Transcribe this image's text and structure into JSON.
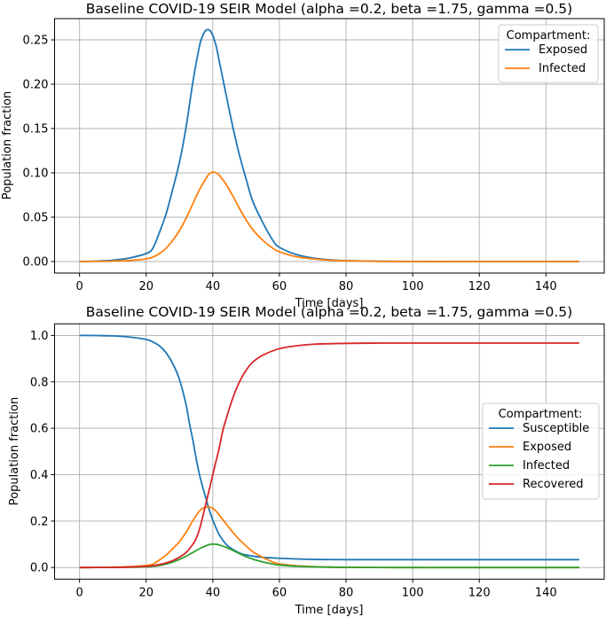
{
  "chart_data": [
    {
      "type": "line",
      "title": "Baseline COVID-19 SEIR Model (alpha =0.2, beta =1.75, gamma =0.5)",
      "xlabel": "Time [days]",
      "ylabel": "Population fraction",
      "xlim": [
        -7.5,
        157.5
      ],
      "ylim": [
        -0.013,
        0.274
      ],
      "xticks": [
        0,
        20,
        40,
        60,
        80,
        100,
        120,
        140
      ],
      "xtick_labels": [
        "0",
        "20",
        "40",
        "60",
        "80",
        "100",
        "120",
        "140"
      ],
      "yticks": [
        0.0,
        0.05,
        0.1,
        0.15,
        0.2,
        0.25
      ],
      "ytick_labels": [
        "0.00",
        "0.05",
        "0.10",
        "0.15",
        "0.20",
        "0.25"
      ],
      "grid": true,
      "legend": {
        "title": "Compartment:",
        "position": "top-right"
      },
      "series": [
        {
          "name": "Exposed",
          "color": "#1f77b4",
          "x": [
            0,
            5,
            10,
            15,
            20,
            22,
            24,
            26,
            28,
            30,
            32,
            34,
            36,
            37,
            38,
            39,
            40,
            41,
            42,
            44,
            46,
            48,
            50,
            52,
            55,
            58,
            60,
            65,
            70,
            75,
            80,
            90,
            100,
            110,
            120,
            130,
            140,
            150
          ],
          "y": [
            0.0,
            0.0005,
            0.0015,
            0.004,
            0.009,
            0.015,
            0.033,
            0.054,
            0.082,
            0.112,
            0.152,
            0.202,
            0.243,
            0.255,
            0.261,
            0.261,
            0.255,
            0.243,
            0.225,
            0.188,
            0.152,
            0.12,
            0.093,
            0.068,
            0.044,
            0.024,
            0.016,
            0.008,
            0.004,
            0.002,
            0.001,
            0.0003,
            0.0001,
            0.0,
            0.0,
            0.0,
            0.0,
            0.0
          ]
        },
        {
          "name": "Infected",
          "color": "#ff7f0e",
          "x": [
            0,
            5,
            10,
            15,
            20,
            22,
            24,
            26,
            28,
            30,
            32,
            34,
            36,
            38,
            39,
            40,
            41,
            42,
            44,
            46,
            48,
            50,
            52,
            55,
            58,
            60,
            65,
            70,
            75,
            80,
            90,
            100,
            110,
            120,
            130,
            140,
            150
          ],
          "y": [
            0.0,
            0.0002,
            0.0005,
            0.0012,
            0.003,
            0.005,
            0.009,
            0.015,
            0.024,
            0.035,
            0.049,
            0.065,
            0.081,
            0.094,
            0.099,
            0.101,
            0.1,
            0.097,
            0.087,
            0.074,
            0.06,
            0.047,
            0.036,
            0.024,
            0.015,
            0.011,
            0.0055,
            0.003,
            0.0015,
            0.0008,
            0.0002,
            0.0,
            0.0,
            0.0,
            0.0,
            0.0,
            0.0
          ]
        }
      ]
    },
    {
      "type": "line",
      "title": "Baseline COVID-19 SEIR Model (alpha =0.2, beta =1.75, gamma =0.5)",
      "xlabel": "Time [days]",
      "ylabel": "Population fraction",
      "xlim": [
        -7.5,
        157.5
      ],
      "ylim": [
        -0.05,
        1.05
      ],
      "xticks": [
        0,
        20,
        40,
        60,
        80,
        100,
        120,
        140
      ],
      "xtick_labels": [
        "0",
        "20",
        "40",
        "60",
        "80",
        "100",
        "120",
        "140"
      ],
      "yticks": [
        0.0,
        0.2,
        0.4,
        0.6,
        0.8,
        1.0
      ],
      "ytick_labels": [
        "0.0",
        "0.2",
        "0.4",
        "0.6",
        "0.8",
        "1.0"
      ],
      "grid": true,
      "legend": {
        "title": "Compartment:",
        "position": "center-right"
      },
      "series": [
        {
          "name": "Susceptible",
          "color": "#1f77b4",
          "x": [
            0,
            5,
            10,
            15,
            20,
            22,
            24,
            26,
            28,
            30,
            32,
            33,
            34,
            35,
            36,
            37,
            38,
            39,
            40,
            41,
            42,
            44,
            46,
            48,
            50,
            55,
            60,
            65,
            70,
            80,
            90,
            100,
            110,
            120,
            130,
            140,
            150
          ],
          "y": [
            1.0,
            0.9995,
            0.998,
            0.993,
            0.983,
            0.972,
            0.955,
            0.925,
            0.878,
            0.81,
            0.7,
            0.62,
            0.55,
            0.47,
            0.4,
            0.345,
            0.295,
            0.245,
            0.205,
            0.17,
            0.14,
            0.1,
            0.078,
            0.063,
            0.054,
            0.044,
            0.04,
            0.037,
            0.035,
            0.034,
            0.034,
            0.034,
            0.034,
            0.034,
            0.034,
            0.034,
            0.034
          ]
        },
        {
          "name": "Exposed",
          "color": "#ff7f0e",
          "x": [
            0,
            5,
            10,
            15,
            20,
            22,
            24,
            26,
            28,
            30,
            32,
            34,
            36,
            37,
            38,
            39,
            40,
            41,
            42,
            44,
            46,
            48,
            50,
            52,
            55,
            58,
            60,
            65,
            70,
            75,
            80,
            90,
            100,
            110,
            120,
            130,
            140,
            150
          ],
          "y": [
            0.0,
            0.0005,
            0.0015,
            0.004,
            0.009,
            0.015,
            0.033,
            0.054,
            0.082,
            0.112,
            0.152,
            0.202,
            0.243,
            0.255,
            0.261,
            0.261,
            0.255,
            0.243,
            0.225,
            0.188,
            0.152,
            0.12,
            0.093,
            0.068,
            0.044,
            0.024,
            0.016,
            0.008,
            0.004,
            0.002,
            0.001,
            0.0003,
            0.0001,
            0.0,
            0.0,
            0.0,
            0.0,
            0.0
          ]
        },
        {
          "name": "Infected",
          "color": "#2ca02c",
          "x": [
            0,
            5,
            10,
            15,
            20,
            22,
            24,
            26,
            28,
            30,
            32,
            34,
            36,
            38,
            39,
            40,
            41,
            42,
            44,
            46,
            48,
            50,
            52,
            55,
            58,
            60,
            65,
            70,
            75,
            80,
            90,
            100,
            110,
            120,
            130,
            140,
            150
          ],
          "y": [
            0.0,
            0.0002,
            0.0005,
            0.0012,
            0.003,
            0.005,
            0.009,
            0.015,
            0.024,
            0.035,
            0.049,
            0.065,
            0.081,
            0.094,
            0.099,
            0.101,
            0.1,
            0.097,
            0.087,
            0.074,
            0.06,
            0.047,
            0.036,
            0.024,
            0.015,
            0.011,
            0.0055,
            0.003,
            0.0015,
            0.0008,
            0.0002,
            0.0,
            0.0,
            0.0,
            0.0,
            0.0,
            0.0
          ]
        },
        {
          "name": "Recovered",
          "color": "#d62728",
          "x": [
            0,
            5,
            10,
            15,
            20,
            22,
            24,
            26,
            28,
            30,
            32,
            34,
            35,
            36,
            37,
            38,
            39,
            40,
            41,
            42,
            43,
            44,
            46,
            48,
            50,
            52,
            55,
            60,
            65,
            70,
            80,
            90,
            100,
            110,
            120,
            130,
            140,
            150
          ],
          "y": [
            0.0,
            0.0002,
            0.0008,
            0.002,
            0.005,
            0.008,
            0.013,
            0.02,
            0.03,
            0.045,
            0.065,
            0.1,
            0.125,
            0.165,
            0.22,
            0.28,
            0.34,
            0.4,
            0.46,
            0.52,
            0.59,
            0.64,
            0.73,
            0.8,
            0.85,
            0.885,
            0.915,
            0.943,
            0.955,
            0.962,
            0.966,
            0.967,
            0.967,
            0.967,
            0.967,
            0.967,
            0.967,
            0.967
          ]
        }
      ]
    }
  ]
}
